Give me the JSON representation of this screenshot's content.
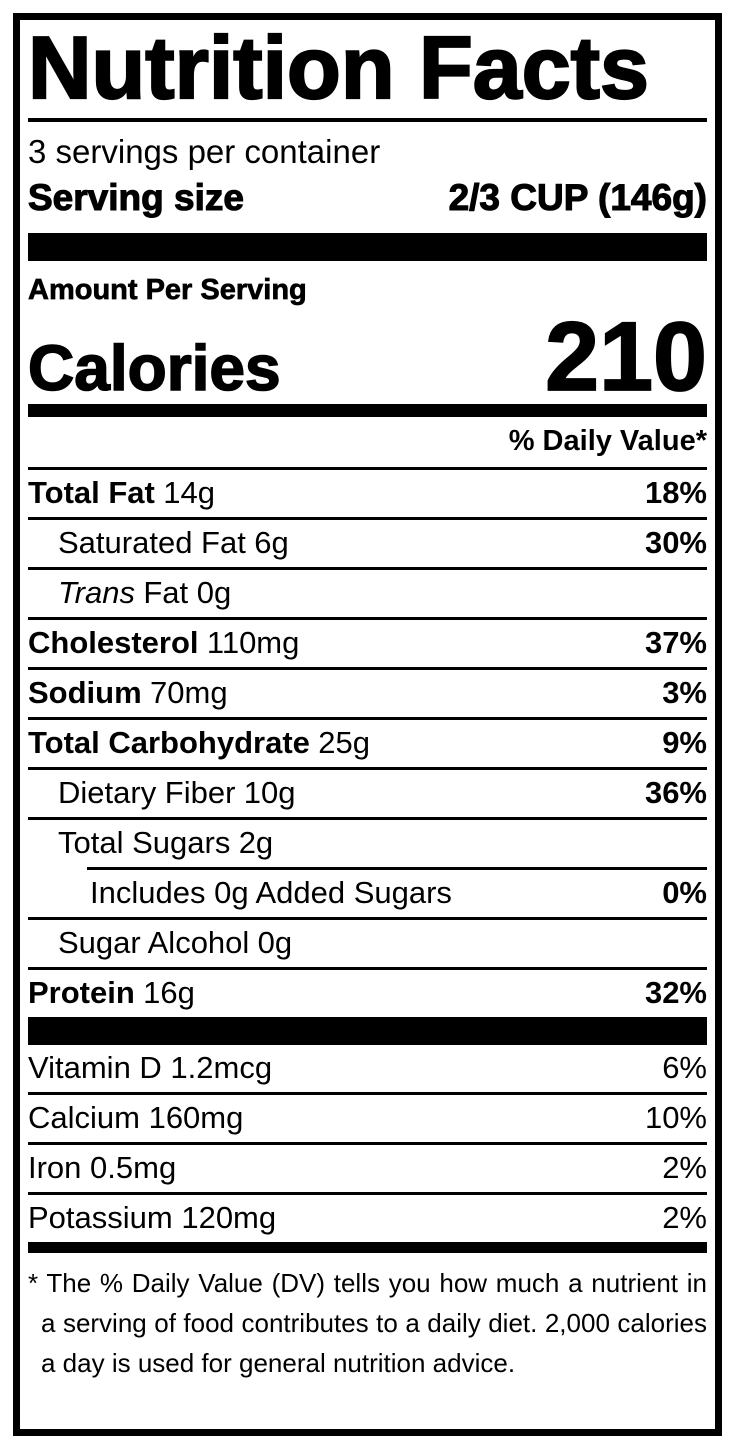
{
  "colors": {
    "ink": "#000000",
    "paper": "#ffffff"
  },
  "label": {
    "title": "Nutrition Facts",
    "servings_per_container": "3 servings per container",
    "serving_size_label": "Serving size",
    "serving_size_value": "2/3 CUP (146g)",
    "amount_per_serving": "Amount Per Serving",
    "calories_label": "Calories",
    "calories_value": "210",
    "daily_value_header": "% Daily Value*",
    "nutrients": [
      {
        "name": "Total Fat",
        "amount": "14g",
        "dv": "18%"
      },
      {
        "name": "Saturated Fat",
        "amount": "6g",
        "dv": "30%"
      },
      {
        "name": "Trans",
        "amount": "Fat 0g",
        "dv": ""
      },
      {
        "name": "Cholesterol",
        "amount": "110mg",
        "dv": "37%"
      },
      {
        "name": "Sodium",
        "amount": "70mg",
        "dv": "3%"
      },
      {
        "name": "Total Carbohydrate",
        "amount": "25g",
        "dv": "9%"
      },
      {
        "name": "Dietary Fiber",
        "amount": "10g",
        "dv": "36%"
      },
      {
        "name": "Total Sugars",
        "amount": "2g",
        "dv": ""
      },
      {
        "name": "Includes 0g Added Sugars",
        "amount": "",
        "dv": "0%"
      },
      {
        "name": "Sugar Alcohol",
        "amount": "0g",
        "dv": ""
      },
      {
        "name": "Protein",
        "amount": "16g",
        "dv": "32%"
      }
    ],
    "micronutrients": [
      {
        "name": "Vitamin D 1.2mcg",
        "dv": "6%"
      },
      {
        "name": "Calcium 160mg",
        "dv": "10%"
      },
      {
        "name": "Iron 0.5mg",
        "dv": "2%"
      },
      {
        "name": "Potassium 120mg",
        "dv": "2%"
      }
    ],
    "footnote": "* The % Daily Value (DV) tells you how much a nutrient in a serving of food contributes to a daily diet. 2,000 calories a day is used for general nutrition advice."
  }
}
